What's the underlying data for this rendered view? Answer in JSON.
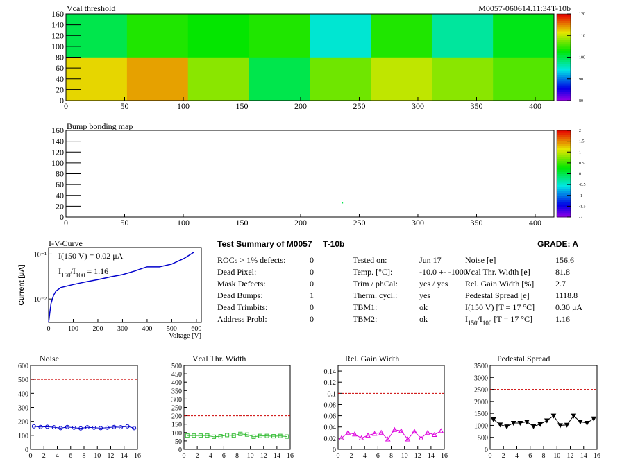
{
  "header": {
    "left": "Vcal threshold",
    "right": "M0057-060614.11:34T-10b"
  },
  "chart_data": [
    {
      "type": "heatmap",
      "title": "Vcal threshold",
      "xbins": [
        0,
        52,
        104,
        156,
        208,
        260,
        312,
        364,
        416
      ],
      "ybins": [
        0,
        80,
        160
      ],
      "z": [
        [
          112,
          114,
          108,
          100,
          107,
          110,
          108,
          106
        ],
        [
          100,
          104,
          103,
          104,
          95,
          104,
          97,
          102
        ]
      ],
      "xlim": [
        0,
        416
      ],
      "ylim": [
        0,
        160
      ],
      "xticks": [
        0,
        50,
        100,
        150,
        200,
        250,
        300,
        350,
        400
      ],
      "yticks": [
        0,
        20,
        40,
        60,
        80,
        100,
        120,
        140,
        160
      ],
      "zlim": [
        80,
        120
      ],
      "zticks": [
        80,
        90,
        100,
        110,
        120
      ]
    },
    {
      "type": "heatmap",
      "title": "Bump bonding map",
      "x": [
        235
      ],
      "y": [
        25
      ],
      "values": [
        0
      ],
      "xlim": [
        0,
        416
      ],
      "ylim": [
        0,
        160
      ],
      "xticks": [
        0,
        50,
        100,
        150,
        200,
        250,
        300,
        350,
        400
      ],
      "yticks": [
        0,
        20,
        40,
        60,
        80,
        100,
        120,
        140,
        160
      ],
      "zlim": [
        -2,
        2
      ],
      "zticks": [
        -2,
        -1.5,
        -1,
        -0.5,
        0,
        0.5,
        1,
        1.5,
        2
      ]
    },
    {
      "type": "line",
      "title": "I-V-Curve",
      "xlabel": "Voltage [V]",
      "ylabel": "Current [μA]",
      "log_y": true,
      "annotations": [
        [
          "I(150 V) = 0.02 μA"
        ],
        [
          "I",
          "150",
          "/I",
          "100",
          " =  1.16"
        ]
      ],
      "x": [
        0,
        5,
        10,
        20,
        30,
        50,
        100,
        150,
        200,
        250,
        300,
        350,
        380,
        400,
        450,
        500,
        550,
        590
      ],
      "series": [
        {
          "color": "#0000cc",
          "values": [
            0.003,
            0.005,
            0.008,
            0.012,
            0.015,
            0.018,
            0.021,
            0.024,
            0.027,
            0.031,
            0.035,
            0.042,
            0.048,
            0.052,
            0.052,
            0.06,
            0.08,
            0.11
          ]
        }
      ],
      "xlim": [
        0,
        620
      ],
      "ylim": [
        0.003,
        0.14
      ],
      "xticks": [
        0,
        100,
        200,
        300,
        400,
        500,
        600
      ],
      "yticks": [
        {
          "value": 0.01,
          "label": "10⁻²"
        },
        {
          "value": 0.1,
          "label": "10⁻¹"
        }
      ]
    },
    {
      "type": "scatter",
      "title": "Noise",
      "marker": "circle",
      "threshold": 500,
      "x": [
        0.5,
        1.5,
        2.5,
        3.5,
        4.5,
        5.5,
        6.5,
        7.5,
        8.5,
        9.5,
        10.5,
        11.5,
        12.5,
        13.5,
        14.5,
        15.5
      ],
      "series": [
        {
          "color": "#0000cc",
          "values": [
            165,
            160,
            162,
            158,
            152,
            160,
            155,
            150,
            158,
            155,
            152,
            155,
            160,
            158,
            165,
            152
          ]
        }
      ],
      "xlim": [
        0,
        16
      ],
      "ylim": [
        0,
        600
      ],
      "xticks": [
        0,
        2,
        4,
        6,
        8,
        10,
        12,
        14,
        16
      ],
      "yticks": [
        0,
        100,
        200,
        300,
        400,
        500,
        600
      ]
    },
    {
      "type": "scatter",
      "title": "Vcal Thr. Width",
      "marker": "square",
      "threshold": 200,
      "x": [
        0.5,
        1.5,
        2.5,
        3.5,
        4.5,
        5.5,
        6.5,
        7.5,
        8.5,
        9.5,
        10.5,
        11.5,
        12.5,
        13.5,
        14.5,
        15.5
      ],
      "series": [
        {
          "color": "#33bb33",
          "values": [
            82,
            82,
            82,
            82,
            75,
            78,
            85,
            82,
            92,
            88,
            75,
            80,
            80,
            78,
            80,
            76
          ]
        }
      ],
      "xlim": [
        0,
        16
      ],
      "ylim": [
        0,
        500
      ],
      "xticks": [
        0,
        2,
        4,
        6,
        8,
        10,
        12,
        14,
        16
      ],
      "yticks": [
        0,
        50,
        100,
        150,
        200,
        250,
        300,
        350,
        400,
        450,
        500
      ]
    },
    {
      "type": "scatter",
      "title": "Rel. Gain Width",
      "marker": "triangle",
      "threshold": 0.1,
      "x": [
        0.5,
        1.5,
        2.5,
        3.5,
        4.5,
        5.5,
        6.5,
        7.5,
        8.5,
        9.5,
        10.5,
        11.5,
        12.5,
        13.5,
        14.5,
        15.5
      ],
      "series": [
        {
          "color": "#dd00dd",
          "values": [
            0.02,
            0.03,
            0.027,
            0.02,
            0.025,
            0.028,
            0.03,
            0.018,
            0.035,
            0.033,
            0.018,
            0.032,
            0.02,
            0.03,
            0.026,
            0.033
          ]
        }
      ],
      "xlim": [
        0,
        16
      ],
      "ylim": [
        0,
        0.15
      ],
      "xticks": [
        0,
        2,
        4,
        6,
        8,
        10,
        12,
        14,
        16
      ],
      "yticks": [
        0,
        0.02,
        0.04,
        0.06,
        0.08,
        0.1,
        0.12,
        0.14
      ]
    },
    {
      "type": "scatter",
      "title": "Pedestal Spread",
      "marker": "triangle-down",
      "threshold": 2500,
      "x": [
        0.5,
        1.5,
        2.5,
        3.5,
        4.5,
        5.5,
        6.5,
        7.5,
        8.5,
        9.5,
        10.5,
        11.5,
        12.5,
        13.5,
        14.5,
        15.5
      ],
      "series": [
        {
          "color": "#000000",
          "values": [
            1250,
            1030,
            950,
            1100,
            1100,
            1150,
            960,
            1050,
            1200,
            1400,
            1000,
            1020,
            1400,
            1150,
            1100,
            1280
          ]
        }
      ],
      "xlim": [
        0,
        16
      ],
      "ylim": [
        0,
        3500
      ],
      "xticks": [
        0,
        2,
        4,
        6,
        8,
        10,
        12,
        14,
        16
      ],
      "yticks": [
        0,
        500,
        1000,
        1500,
        2000,
        2500,
        3000,
        3500
      ]
    }
  ],
  "summary": {
    "title": "Test Summary of M0057",
    "module": "T-10b",
    "grade": "GRADE:  A",
    "left": [
      [
        [
          "ROCs > 1% defects:"
        ],
        "0"
      ],
      [
        [
          "Dead Pixel:"
        ],
        "0"
      ],
      [
        [
          "Mask Defects:"
        ],
        "0"
      ],
      [
        [
          "Dead Bumps:"
        ],
        "1"
      ],
      [
        [
          "Dead Trimbits:"
        ],
        "0"
      ],
      [
        [
          "Address Probl:"
        ],
        "0"
      ]
    ],
    "middle": [
      [
        [
          "Tested on:"
        ],
        "Jun 17"
      ],
      [
        [
          "Temp. [°C]:"
        ],
        "-10.0 +- -1000"
      ],
      [
        [
          "Trim / phCal:"
        ],
        "yes / yes"
      ],
      [
        [
          "Therm. cycl.:"
        ],
        "yes"
      ],
      [
        [
          "TBM1:"
        ],
        "ok"
      ],
      [
        [
          "TBM2:"
        ],
        "ok"
      ]
    ],
    "right": [
      [
        [
          "Noise [e]"
        ],
        "156.6"
      ],
      [
        [
          "Vcal Thr. Width [e]"
        ],
        "81.8"
      ],
      [
        [
          "Rel. Gain Width [%]"
        ],
        "2.7"
      ],
      [
        [
          "Pedestal Spread [e]"
        ],
        "1118.8"
      ],
      [
        [
          "I(150 V) [T = 17 °C]"
        ],
        "0.30 μA"
      ],
      [
        [
          "I",
          "150",
          "/I",
          "100",
          "  [T = 17 °C]"
        ],
        "1.16"
      ]
    ]
  }
}
